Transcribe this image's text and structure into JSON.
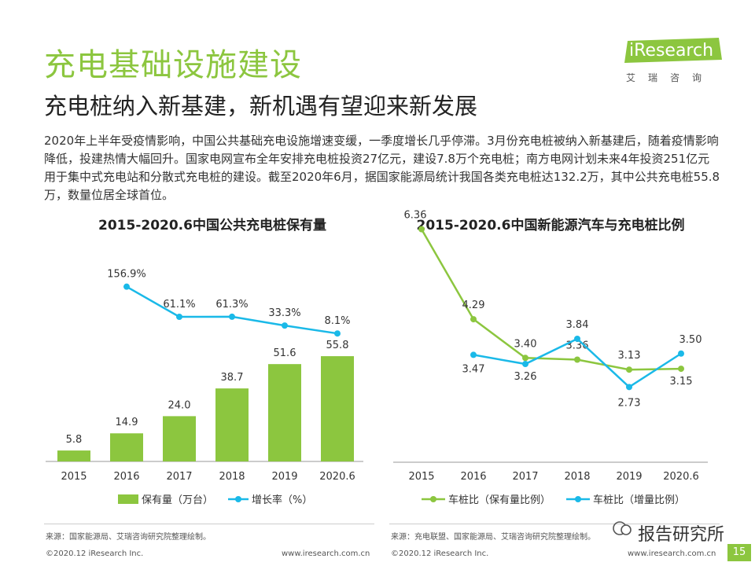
{
  "header": {
    "title": "充电基础设施建设",
    "subtitle": "充电桩纳入新基建，新机遇有望迎来新发展"
  },
  "logo": {
    "name": "iResearch",
    "cn": "艾瑞咨询"
  },
  "intro": "2020年上半年受疫情影响，中国公共基础充电设施增速变缓，一季度增长几乎停滞。3月份充电桩被纳入新基建后，随着疫情影响降低，投建热情大幅回升。国家电网宣布全年安排充电桩投资27亿元，建设7.8万个充电桩；南方电网计划未来4年投资251亿元用于集中式充电站和分散式充电桩的建设。截至2020年6月，据国家能源局统计我国各类充电桩达132.2万，其中公共充电桩55.8万，数量位居全球首位。",
  "colors": {
    "accent": "#8cc63f",
    "line_blue": "#1ab9e8",
    "axis": "#999999"
  },
  "chart_data": [
    {
      "type": "bar+line",
      "title": "2015-2020.6中国公共充电桩保有量",
      "categories": [
        "2015",
        "2016",
        "2017",
        "2018",
        "2019",
        "2020.6"
      ],
      "series": [
        {
          "name": "保有量（万台）",
          "kind": "bar",
          "values": [
            5.8,
            14.9,
            24.0,
            38.7,
            51.6,
            55.8
          ],
          "labels": [
            "5.8",
            "14.9",
            "24.0",
            "38.7",
            "51.6",
            "55.8"
          ]
        },
        {
          "name": "增长率（%）",
          "kind": "line",
          "x": [
            "2016",
            "2017",
            "2018",
            "2019",
            "2020.6"
          ],
          "values": [
            156.9,
            61.1,
            61.3,
            33.3,
            8.1
          ],
          "labels": [
            "156.9%",
            "61.1%",
            "61.3%",
            "33.3%",
            "8.1%"
          ]
        }
      ],
      "legend": [
        "保有量（万台）",
        "增长率（%）"
      ]
    },
    {
      "type": "line",
      "title": "2015-2020.6中国新能源汽车与充电桩比例",
      "categories": [
        "2015",
        "2016",
        "2017",
        "2018",
        "2019",
        "2020.6"
      ],
      "series": [
        {
          "name": "车桩比（保有量比例）",
          "values": [
            6.36,
            4.29,
            3.4,
            3.36,
            3.13,
            3.15
          ],
          "labels": [
            "6.36",
            "4.29",
            "3.40",
            "3.36",
            "3.13",
            "3.15"
          ]
        },
        {
          "name": "车桩比（增量比例）",
          "x": [
            "2016",
            "2017",
            "2018",
            "2019",
            "2020.6"
          ],
          "values": [
            3.47,
            3.26,
            3.84,
            2.73,
            3.5
          ],
          "labels": [
            "3.47",
            "3.26",
            "3.84",
            "2.73",
            "3.50"
          ]
        }
      ],
      "legend": [
        "车桩比（保有量比例）",
        "车桩比（增量比例）"
      ]
    }
  ],
  "footer": {
    "source_left": "来源：国家能源局、艾瑞咨询研究院整理绘制。",
    "source_right": "来源：充电联盟、国家能源局、艾瑞咨询研究院整理绘制。",
    "copyright_left": "©2020.12 iResearch Inc.",
    "site_left": "www.iresearch.com.cn",
    "copyright_right": "©2020.12 iResearch Inc.",
    "site_right": "www.iresearch.com.cn",
    "watermark": "报告研究所",
    "page": "15"
  }
}
